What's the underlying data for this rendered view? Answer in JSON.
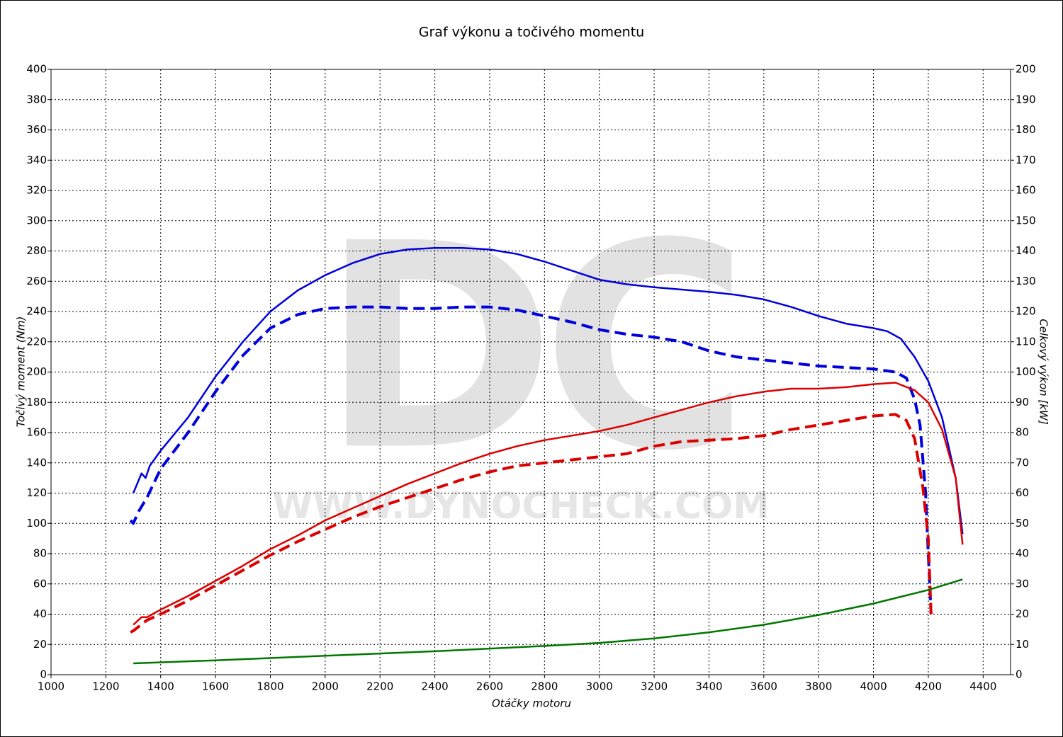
{
  "chart_data": {
    "type": "line",
    "title": "Graf výkonu a točivého momentu",
    "x_label": "Otáčky motoru",
    "y_label": "Točivý moment (Nm)",
    "y2_label": "Celkový výkon [kW]",
    "watermark": {
      "logo": "DC",
      "url": "WWW.DYNOCHECK.COM"
    },
    "xlim": [
      1000,
      4500
    ],
    "xticks": [
      1000,
      1200,
      1400,
      1600,
      1800,
      2000,
      2200,
      2400,
      2600,
      2800,
      3000,
      3200,
      3400,
      3600,
      3800,
      4000,
      4200,
      4400
    ],
    "ylim": [
      0,
      400
    ],
    "yticks": [
      0,
      20,
      40,
      60,
      80,
      100,
      120,
      140,
      160,
      180,
      200,
      220,
      240,
      260,
      280,
      300,
      320,
      340,
      360,
      380,
      400
    ],
    "y2lim": [
      0,
      200
    ],
    "y2ticks": [
      0,
      10,
      20,
      30,
      40,
      50,
      60,
      70,
      80,
      90,
      100,
      110,
      120,
      130,
      140,
      150,
      160,
      170,
      180,
      190,
      200
    ],
    "grid": true,
    "series": [
      {
        "color": "#0000dd",
        "dashed": false,
        "axis": "y",
        "x": [
          1300,
          1330,
          1345,
          1360,
          1400,
          1500,
          1600,
          1700,
          1800,
          1900,
          2000,
          2100,
          2200,
          2300,
          2400,
          2500,
          2600,
          2700,
          2800,
          2900,
          3000,
          3100,
          3200,
          3400,
          3500,
          3600,
          3700,
          3800,
          3900,
          4000,
          4050,
          4100,
          4150,
          4200,
          4250,
          4300,
          4325
        ],
        "values": [
          120,
          133,
          130,
          138,
          148,
          170,
          197,
          220,
          240,
          254,
          264,
          272,
          278,
          281,
          282,
          282,
          281,
          278,
          273,
          267,
          261,
          258,
          256,
          253,
          251,
          248,
          243,
          237,
          232,
          229,
          227,
          222,
          210,
          194,
          170,
          130,
          93
        ]
      },
      {
        "color": "#0000dd",
        "dashed": true,
        "axis": "y",
        "x": [
          1290,
          1300,
          1320,
          1350,
          1400,
          1500,
          1600,
          1700,
          1800,
          1900,
          2000,
          2100,
          2200,
          2300,
          2400,
          2500,
          2600,
          2700,
          2800,
          2900,
          3000,
          3100,
          3200,
          3300,
          3400,
          3500,
          3600,
          3700,
          3800,
          3900,
          4000,
          4080,
          4120,
          4150,
          4170,
          4190,
          4200,
          4210
        ],
        "values": [
          102,
          100,
          108,
          117,
          136,
          160,
          187,
          211,
          229,
          238,
          242,
          243,
          243,
          242,
          242,
          243,
          243,
          241,
          237,
          233,
          228,
          225,
          223,
          220,
          214,
          210,
          208,
          206,
          204,
          203,
          202,
          200,
          196,
          182,
          165,
          120,
          80,
          40
        ]
      },
      {
        "color": "#dd0000",
        "dashed": false,
        "axis": "y2",
        "x": [
          1300,
          1330,
          1350,
          1400,
          1500,
          1600,
          1700,
          1800,
          1900,
          2000,
          2100,
          2200,
          2300,
          2400,
          2500,
          2600,
          2700,
          2800,
          2900,
          3000,
          3100,
          3200,
          3300,
          3400,
          3500,
          3600,
          3700,
          3800,
          3900,
          4000,
          4080,
          4150,
          4200,
          4250,
          4300,
          4325
        ],
        "values": [
          16.5,
          19,
          19,
          21.5,
          26,
          31,
          36,
          41.5,
          46,
          51,
          55,
          59,
          63,
          66.5,
          70,
          73,
          75.5,
          77.5,
          79,
          80.5,
          82.5,
          85,
          87.5,
          90,
          92,
          93.5,
          94.5,
          94.5,
          95,
          96,
          96.5,
          94,
          90,
          81,
          65,
          43
        ]
      },
      {
        "color": "#dd0000",
        "dashed": true,
        "axis": "y2",
        "x": [
          1290,
          1300,
          1350,
          1400,
          1500,
          1600,
          1700,
          1800,
          1900,
          2000,
          2100,
          2200,
          2300,
          2400,
          2500,
          2600,
          2700,
          2800,
          2900,
          3000,
          3100,
          3200,
          3300,
          3400,
          3500,
          3600,
          3700,
          3800,
          3900,
          4000,
          4080,
          4120,
          4150,
          4180,
          4200,
          4210
        ],
        "values": [
          14,
          14.5,
          18,
          20,
          24.5,
          29.5,
          34.5,
          39.5,
          44,
          48,
          52,
          55.5,
          58.5,
          61.5,
          64.5,
          67,
          69,
          70,
          71,
          72,
          73,
          75.5,
          77,
          77.5,
          78,
          79,
          81,
          82.5,
          84,
          85.5,
          86,
          84,
          78,
          62,
          45,
          20
        ]
      },
      {
        "color": "#007700",
        "dashed": false,
        "axis": "y",
        "x": [
          1300,
          1600,
          2000,
          2400,
          2800,
          3000,
          3200,
          3400,
          3600,
          3800,
          4000,
          4200,
          4325
        ],
        "values": [
          7.5,
          9.5,
          12.5,
          15.5,
          19,
          21,
          24,
          28,
          33,
          39.5,
          47,
          56,
          63
        ]
      }
    ]
  }
}
